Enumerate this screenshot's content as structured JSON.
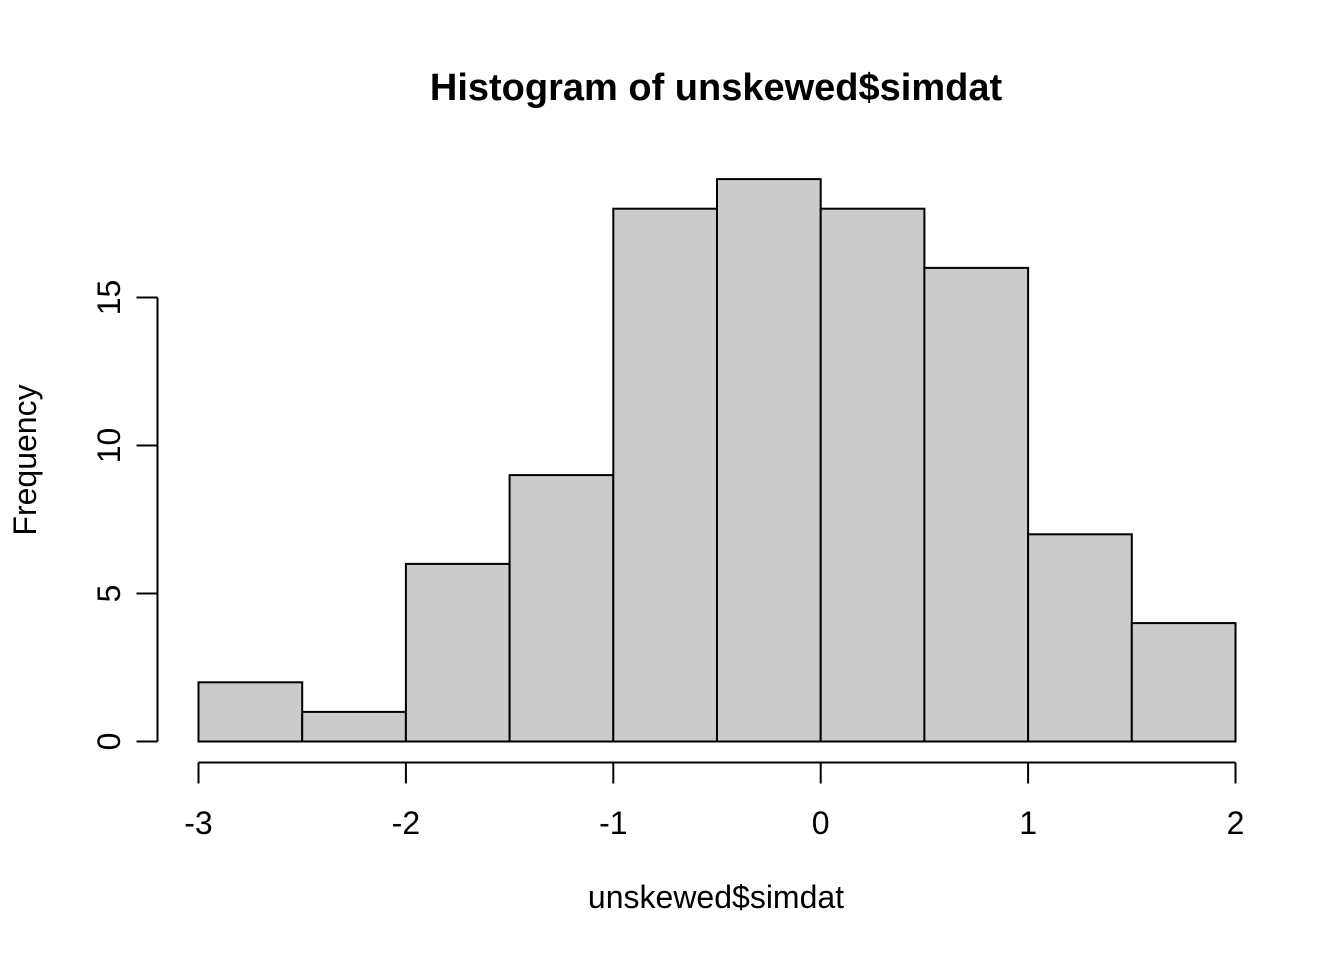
{
  "chart_data": {
    "type": "bar",
    "subtype": "histogram",
    "title": "Histogram of unskewed$simdat",
    "xlabel": "unskewed$simdat",
    "ylabel": "Frequency",
    "bins": {
      "start": -3,
      "width": 0.5,
      "edges": [
        -3,
        -2.5,
        -2,
        -1.5,
        -1,
        -0.5,
        0,
        0.5,
        1,
        1.5,
        2
      ]
    },
    "counts": [
      2,
      1,
      6,
      9,
      18,
      19,
      18,
      16,
      7,
      4
    ],
    "x_tick_values": [
      -3,
      -2,
      -1,
      0,
      1,
      2
    ],
    "x_tick_labels": [
      "-3",
      "-2",
      "-1",
      "0",
      "1",
      "2"
    ],
    "y_tick_values": [
      0,
      5,
      10,
      15
    ],
    "y_tick_labels": [
      "0",
      "5",
      "10",
      "15"
    ],
    "xlim": [
      -3,
      2
    ],
    "ylim": [
      0,
      15
    ],
    "grid": false,
    "legend": null,
    "colors": {
      "bar_fill": "#CBCBCB",
      "bar_stroke": "#000000",
      "axis": "#000000",
      "text": "#000000",
      "background": "#FFFFFF"
    }
  }
}
